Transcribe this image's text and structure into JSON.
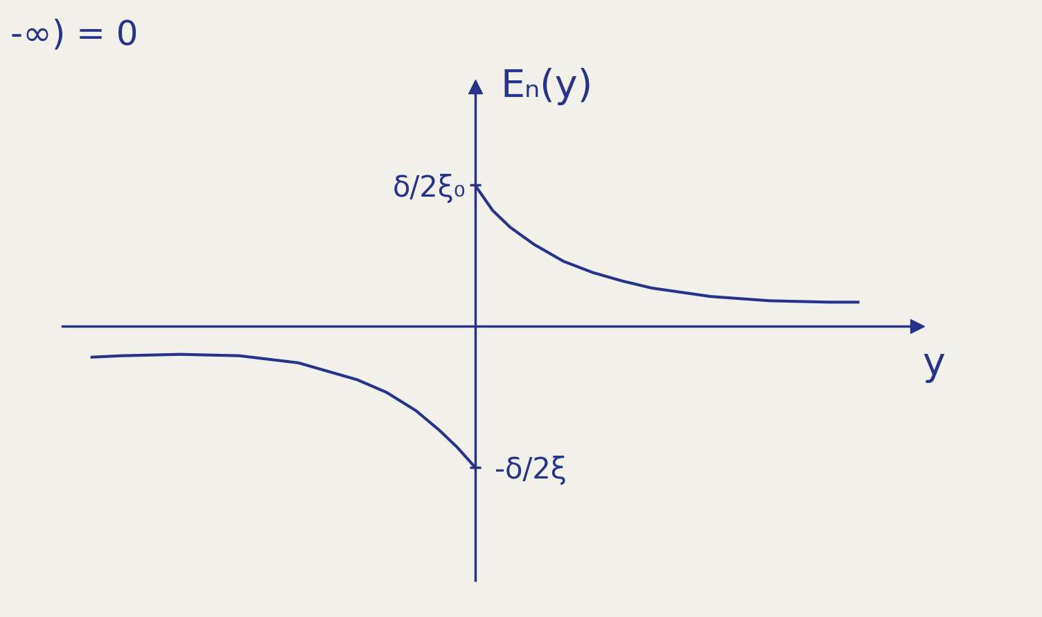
{
  "chart_data": {
    "type": "line",
    "y_label": "Eₙ(y)",
    "x_label": "y",
    "annotations": [
      "-∞) = 0"
    ],
    "series": [
      {
        "x": [
          0,
          0.3,
          0.6,
          1,
          1.5,
          2,
          2.5,
          3,
          4,
          5,
          6,
          6.5
        ],
        "values": [
          1,
          0.82,
          0.7,
          0.58,
          0.46,
          0.38,
          0.32,
          0.27,
          0.21,
          0.18,
          0.17,
          0.17
        ],
        "color": "#27338a"
      },
      {
        "x": [
          -6.5,
          -6,
          -5,
          -4,
          -3,
          -2,
          -1.5,
          -1,
          -0.6,
          -0.3,
          0
        ],
        "values": [
          -0.22,
          -0.21,
          -0.2,
          -0.21,
          -0.26,
          -0.38,
          -0.47,
          -0.6,
          -0.74,
          -0.86,
          -1
        ],
        "color": "#27338a"
      }
    ],
    "xlim": [
      -7,
      7.5
    ],
    "ylim": [
      -1.8,
      1.7
    ],
    "yticks": [
      {
        "value": 1,
        "label": "δ/2ξ₀"
      },
      {
        "value": -1,
        "label": "-δ/2ξ"
      }
    ],
    "tick_labels": "y",
    "grid": false
  }
}
